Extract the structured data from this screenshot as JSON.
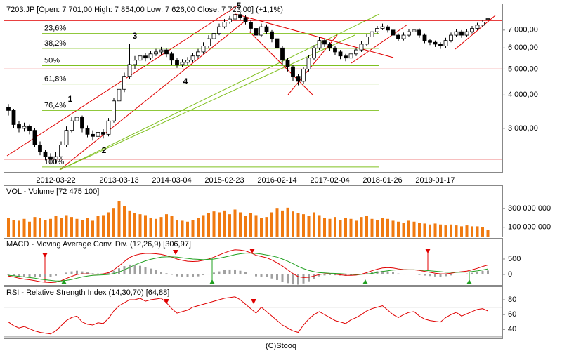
{
  "footer": "(C)Stooq",
  "chart_data": [
    {
      "type": "candlestick",
      "title": "7203.JP [Open: 7 701,00  High: 7 854,00  Low: 7 626,00  Close: 7 723,00] (+1,1%)",
      "categories": [
        null,
        null,
        null,
        null,
        null,
        null,
        null,
        null,
        null,
        "2012-03-22",
        null,
        null,
        null,
        null,
        null,
        null,
        null,
        null,
        null,
        null,
        null,
        "2013-03-13",
        null,
        null,
        null,
        null,
        null,
        null,
        null,
        null,
        null,
        "2014-03-04",
        null,
        null,
        null,
        null,
        null,
        null,
        null,
        null,
        null,
        "2015-02-23",
        null,
        null,
        null,
        null,
        null,
        null,
        null,
        null,
        null,
        "2016-02-14",
        null,
        null,
        null,
        null,
        null,
        null,
        null,
        null,
        null,
        "2017-02-04",
        null,
        null,
        null,
        null,
        null,
        null,
        null,
        null,
        null,
        "2018-01-26",
        null,
        null,
        null,
        null,
        null,
        null,
        null,
        null,
        null,
        "2019-01-17",
        null,
        null,
        null,
        null,
        null,
        null,
        null,
        null,
        null,
        null
      ],
      "open": [
        3600,
        3500,
        3100,
        3000,
        3050,
        2950,
        2600,
        2450,
        2350,
        2300,
        2350,
        2600,
        2950,
        3200,
        3300,
        3000,
        2850,
        2800,
        2900,
        2850,
        3200,
        3800,
        4200,
        4700,
        5200,
        5400,
        5600,
        5500,
        5700,
        5800,
        5900,
        5700,
        5400,
        5200,
        5300,
        5400,
        5600,
        5800,
        6100,
        6500,
        6800,
        7200,
        7500,
        7700,
        8000,
        7800,
        7500,
        7100,
        6700,
        7200,
        6900,
        6500,
        6000,
        5400,
        5100,
        4700,
        4500,
        5000,
        5500,
        6000,
        6400,
        6200,
        6000,
        5800,
        5600,
        5500,
        5700,
        5900,
        6200,
        6600,
        6900,
        7100,
        7200,
        7000,
        6700,
        6500,
        6700,
        6900,
        7000,
        6700,
        6400,
        6300,
        6200,
        6100,
        6400,
        6700,
        6900,
        6700,
        6900,
        7100,
        7300,
        7701
      ],
      "high": [
        3700,
        3550,
        3200,
        3150,
        3100,
        3000,
        2680,
        2500,
        2420,
        2450,
        2680,
        3050,
        3300,
        3400,
        3350,
        3080,
        2950,
        3000,
        2980,
        3280,
        3900,
        4350,
        4850,
        6200,
        5600,
        5800,
        5750,
        5850,
        5950,
        6050,
        6000,
        5800,
        5500,
        5450,
        5550,
        5750,
        5950,
        6300,
        6700,
        7000,
        7400,
        7700,
        7900,
        8300,
        8200,
        7950,
        7600,
        7200,
        7400,
        7350,
        7000,
        6600,
        6100,
        5500,
        5200,
        4800,
        5100,
        5650,
        6150,
        6600,
        6500,
        6300,
        6100,
        5900,
        5700,
        5800,
        6000,
        6350,
        6750,
        7050,
        7250,
        7400,
        7300,
        7100,
        6800,
        6850,
        7050,
        7150,
        7100,
        6800,
        6500,
        6400,
        6300,
        6550,
        6850,
        7050,
        7000,
        7050,
        7250,
        7450,
        7650,
        7854
      ],
      "low": [
        3350,
        3000,
        2900,
        2920,
        2850,
        2550,
        2380,
        2280,
        2200,
        2220,
        2300,
        2550,
        2900,
        3100,
        2900,
        2780,
        2700,
        2720,
        2750,
        2800,
        3150,
        3700,
        4100,
        4600,
        5000,
        5300,
        5350,
        5400,
        5600,
        5650,
        5550,
        5200,
        5050,
        5100,
        5200,
        5300,
        5500,
        5700,
        6000,
        6400,
        6700,
        7100,
        7400,
        7600,
        7600,
        7350,
        6900,
        6500,
        6600,
        6750,
        6300,
        5800,
        5200,
        4900,
        4500,
        4350,
        4400,
        4900,
        5400,
        5900,
        6050,
        5850,
        5650,
        5450,
        5350,
        5400,
        5600,
        5800,
        6100,
        6500,
        6800,
        7000,
        6850,
        6550,
        6350,
        6400,
        6600,
        6800,
        6550,
        6250,
        6150,
        6050,
        5950,
        6000,
        6300,
        6600,
        6550,
        6600,
        6800,
        7000,
        7200,
        7626
      ],
      "close": [
        3500,
        3100,
        3000,
        3050,
        2950,
        2600,
        2450,
        2350,
        2300,
        2350,
        2600,
        2950,
        3200,
        3300,
        3000,
        2850,
        2800,
        2900,
        2850,
        3200,
        3800,
        4200,
        4700,
        5200,
        5400,
        5600,
        5500,
        5700,
        5800,
        5900,
        5700,
        5400,
        5200,
        5300,
        5400,
        5600,
        5800,
        6100,
        6500,
        6800,
        7200,
        7500,
        7700,
        8000,
        7800,
        7500,
        7100,
        6700,
        7200,
        6900,
        6500,
        6000,
        5400,
        5100,
        4700,
        4500,
        5000,
        5500,
        6000,
        6400,
        6200,
        6000,
        5800,
        5600,
        5500,
        5700,
        5900,
        6200,
        6600,
        6900,
        7100,
        7200,
        7000,
        6700,
        6500,
        6700,
        6900,
        7000,
        6700,
        6400,
        6300,
        6200,
        6100,
        6400,
        6700,
        6900,
        6700,
        6900,
        7100,
        7300,
        7500,
        7723
      ],
      "log_scale": true,
      "ylim": [
        2060,
        8800
      ],
      "yticks": [
        {
          "value": 3000,
          "label": "3 000,00"
        },
        {
          "value": 4000,
          "label": "4 000,00"
        },
        {
          "value": 5000,
          "label": "5 000,00"
        },
        {
          "value": 6000,
          "label": "6 000,00"
        },
        {
          "value": 7000,
          "label": "7 000,00"
        }
      ],
      "fibonacci": [
        {
          "value": 6800,
          "label": "23,6%"
        },
        {
          "value": 5980,
          "label": "38,2%"
        },
        {
          "value": 5150,
          "label": "50%"
        },
        {
          "value": 4400,
          "label": "61,8%"
        },
        {
          "value": 3500,
          "label": "76,4%"
        },
        {
          "value": 2150,
          "label": "100%"
        }
      ],
      "fib_color": "#80c020",
      "hlines": [
        7600,
        5000,
        2300
      ],
      "hline_color": "#e00000",
      "annotations": [
        "1",
        "2",
        "3",
        "4",
        "5"
      ]
    },
    {
      "type": "bar",
      "title": "VOL - Volume [72 475 100]",
      "color": "#f07a10",
      "values": [
        200000000,
        180000000,
        170000000,
        190000000,
        160000000,
        210000000,
        200000000,
        180000000,
        190000000,
        220000000,
        200000000,
        230000000,
        210000000,
        190000000,
        180000000,
        200000000,
        170000000,
        220000000,
        230000000,
        260000000,
        300000000,
        380000000,
        330000000,
        280000000,
        250000000,
        240000000,
        230000000,
        200000000,
        190000000,
        210000000,
        240000000,
        220000000,
        180000000,
        170000000,
        160000000,
        180000000,
        200000000,
        230000000,
        250000000,
        270000000,
        260000000,
        280000000,
        240000000,
        290000000,
        260000000,
        220000000,
        250000000,
        230000000,
        200000000,
        210000000,
        260000000,
        300000000,
        280000000,
        310000000,
        270000000,
        250000000,
        240000000,
        220000000,
        260000000,
        230000000,
        200000000,
        190000000,
        210000000,
        180000000,
        200000000,
        190000000,
        170000000,
        210000000,
        220000000,
        190000000,
        180000000,
        200000000,
        190000000,
        170000000,
        160000000,
        150000000,
        170000000,
        160000000,
        150000000,
        140000000,
        130000000,
        140000000,
        130000000,
        120000000,
        130000000,
        120000000,
        110000000,
        120000000,
        110000000,
        110000000,
        100000000,
        72475100
      ],
      "ylim": [
        0,
        550000000
      ],
      "yticks": [
        {
          "value": 100000000,
          "label": "100 000 000"
        },
        {
          "value": 300000000,
          "label": "300 000 000"
        }
      ]
    },
    {
      "type": "line",
      "title": "MACD - Moving Average Conv. Div. (12,26,9) [306,97]",
      "series": [
        {
          "color": "#e00000",
          "values": [
            -50,
            -80,
            -120,
            -150,
            -170,
            -200,
            -230,
            -250,
            -260,
            -250,
            -200,
            -130,
            -60,
            0,
            20,
            20,
            10,
            10,
            20,
            60,
            150,
            280,
            420,
            550,
            620,
            660,
            680,
            680,
            670,
            650,
            610,
            560,
            500,
            460,
            430,
            420,
            430,
            460,
            500,
            560,
            630,
            700,
            760,
            800,
            790,
            760,
            700,
            620,
            580,
            540,
            470,
            380,
            270,
            150,
            30,
            -70,
            -100,
            -90,
            -50,
            0,
            20,
            20,
            10,
            -10,
            -30,
            -30,
            -20,
            10,
            60,
            120,
            170,
            210,
            220,
            210,
            180,
            160,
            150,
            150,
            130,
            100,
            70,
            40,
            20,
            20,
            40,
            70,
            90,
            110,
            150,
            200,
            260,
            306.97
          ]
        },
        {
          "color": "#20a020",
          "values": [
            -30,
            -40,
            -60,
            -80,
            -100,
            -120,
            -150,
            -170,
            -190,
            -210,
            -210,
            -190,
            -160,
            -120,
            -80,
            -50,
            -30,
            -20,
            -10,
            0,
            30,
            80,
            150,
            230,
            310,
            380,
            440,
            490,
            530,
            560,
            570,
            570,
            560,
            540,
            520,
            500,
            490,
            480,
            490,
            500,
            530,
            560,
            600,
            640,
            670,
            690,
            690,
            680,
            660,
            630,
            600,
            560,
            500,
            430,
            350,
            260,
            190,
            130,
            90,
            60,
            50,
            40,
            35,
            25,
            15,
            5,
            0,
            5,
            15,
            35,
            65,
            95,
            120,
            140,
            150,
            150,
            150,
            150,
            145,
            135,
            120,
            105,
            90,
            75,
            70,
            70,
            75,
            80,
            95,
            115,
            145,
            180
          ]
        }
      ],
      "histogram": {
        "color": "#a0a0a0",
        "values": [
          -20,
          -40,
          -60,
          -70,
          -70,
          -80,
          -80,
          -80,
          -70,
          -40,
          10,
          60,
          100,
          120,
          100,
          70,
          40,
          30,
          30,
          60,
          120,
          200,
          270,
          320,
          310,
          280,
          240,
          190,
          140,
          90,
          40,
          -10,
          -60,
          -80,
          -90,
          -80,
          -60,
          -20,
          10,
          60,
          100,
          140,
          160,
          160,
          120,
          70,
          10,
          -60,
          -80,
          -90,
          -130,
          -180,
          -230,
          -280,
          -320,
          -330,
          -290,
          -220,
          -140,
          -60,
          -30,
          -20,
          -25,
          -35,
          -45,
          -35,
          -20,
          5,
          45,
          85,
          105,
          115,
          100,
          70,
          30,
          10,
          0,
          0,
          -15,
          -35,
          -50,
          -65,
          -70,
          -55,
          -30,
          0,
          15,
          30,
          55,
          85,
          115,
          127
        ]
      },
      "ylim": [
        -340,
        1180
      ],
      "yticks": [
        0,
        500
      ]
    },
    {
      "type": "line",
      "title": "RSI - Relative Strength Index (14,30,70) [64,88]",
      "series": [
        {
          "color": "#e00000",
          "values": [
            50,
            45,
            42,
            44,
            41,
            38,
            36,
            35,
            34,
            38,
            45,
            52,
            56,
            58,
            50,
            47,
            46,
            49,
            48,
            55,
            65,
            72,
            76,
            80,
            80,
            82,
            78,
            80,
            81,
            82,
            76,
            68,
            62,
            64,
            66,
            70,
            72,
            74,
            76,
            78,
            80,
            82,
            83,
            84,
            80,
            74,
            68,
            62,
            70,
            64,
            58,
            52,
            46,
            42,
            38,
            36,
            46,
            54,
            60,
            64,
            60,
            56,
            52,
            50,
            48,
            53,
            56,
            60,
            65,
            68,
            70,
            72,
            66,
            60,
            56,
            60,
            63,
            64,
            58,
            54,
            52,
            51,
            50,
            56,
            60,
            63,
            58,
            61,
            64,
            67,
            68,
            64.88
          ]
        }
      ],
      "levels": [
        30,
        70
      ],
      "ylim": [
        28,
        98
      ],
      "yticks": [
        40,
        60,
        80
      ]
    }
  ]
}
